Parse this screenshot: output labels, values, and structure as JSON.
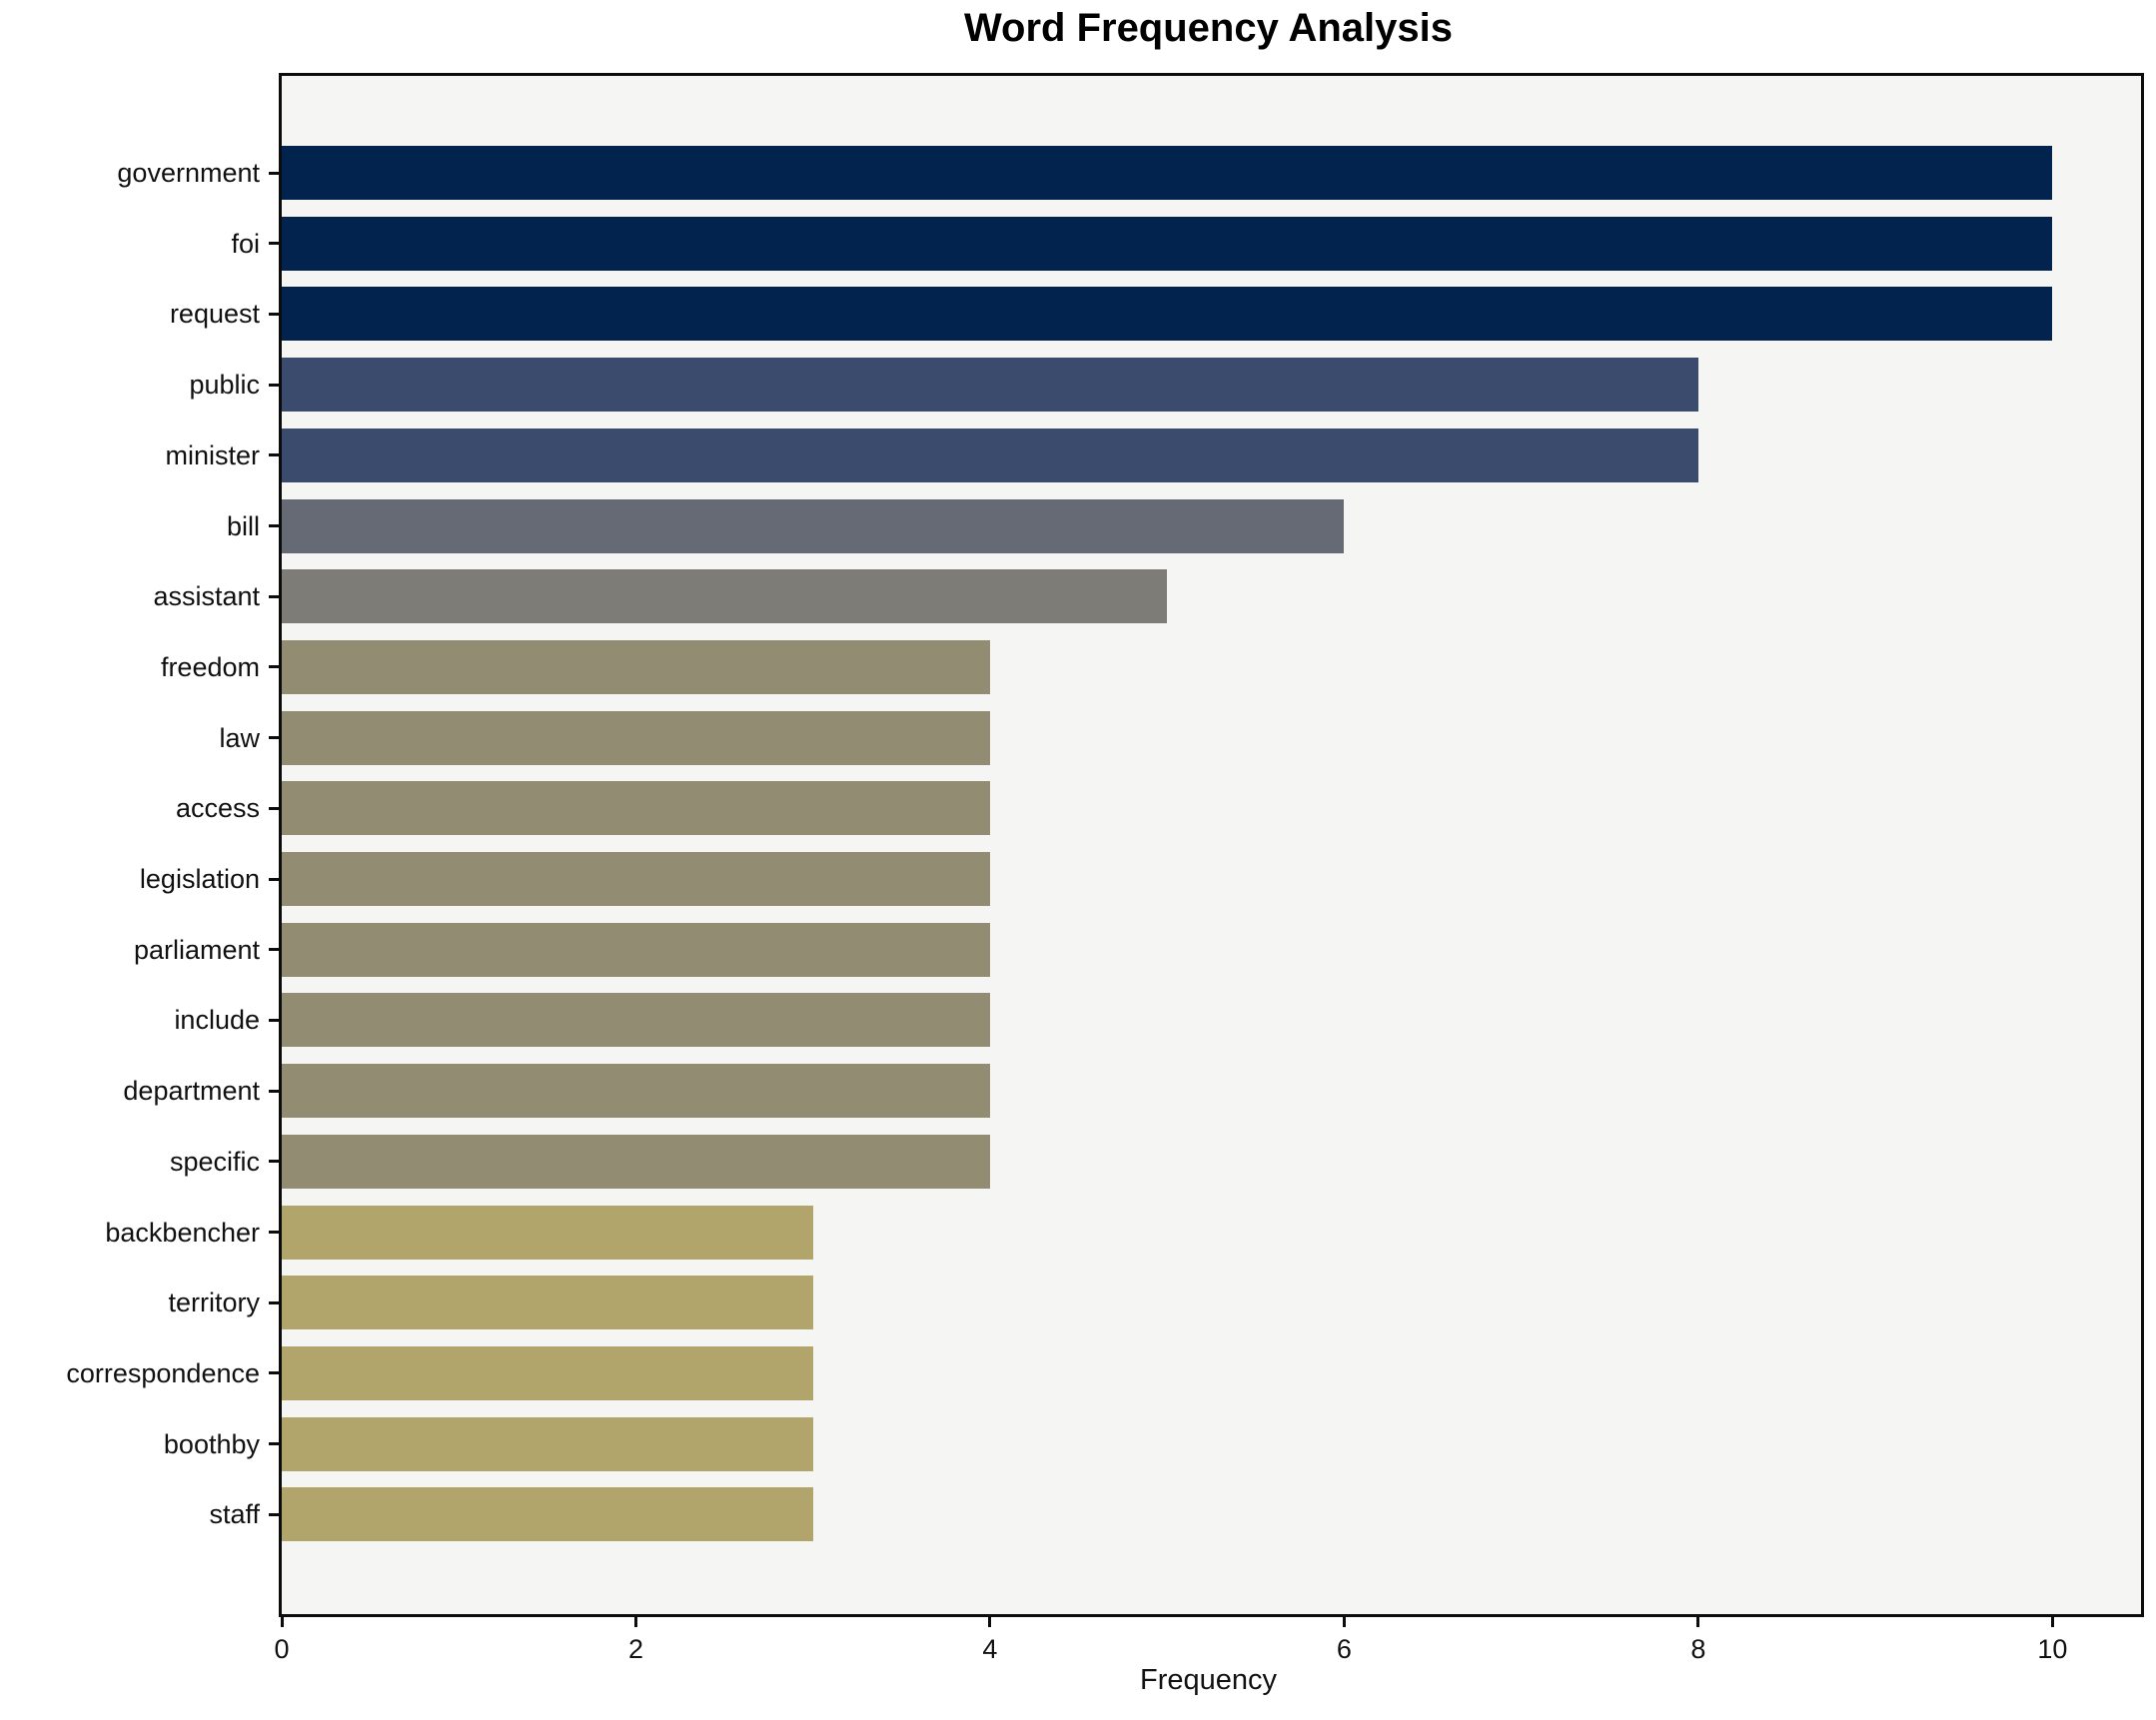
{
  "chart_data": {
    "type": "bar",
    "orientation": "horizontal",
    "title": "Word Frequency Analysis",
    "xlabel": "Frequency",
    "ylabel": "",
    "grid": false,
    "legend": null,
    "xlim": [
      0,
      10.5
    ],
    "x_ticks": [
      0,
      2,
      4,
      6,
      8,
      10
    ],
    "categories": [
      "government",
      "foi",
      "request",
      "public",
      "minister",
      "bill",
      "assistant",
      "freedom",
      "law",
      "access",
      "legislation",
      "parliament",
      "include",
      "department",
      "specific",
      "backbencher",
      "territory",
      "correspondence",
      "boothby",
      "staff"
    ],
    "values": [
      10,
      10,
      10,
      8,
      8,
      6,
      5,
      4,
      4,
      4,
      4,
      4,
      4,
      4,
      4,
      3,
      3,
      3,
      3,
      3
    ],
    "bar_colors": [
      "#02234e",
      "#02234e",
      "#02234e",
      "#3b4b6e",
      "#3b4b6e",
      "#666a74",
      "#7d7c76",
      "#918c72",
      "#918c72",
      "#918c72",
      "#918c72",
      "#918c72",
      "#918c72",
      "#918c72",
      "#918c72",
      "#b2a56c",
      "#b2a56c",
      "#b2a56c",
      "#b2a56c",
      "#b2a56c"
    ],
    "colors": {
      "figure_background": "#ffffff",
      "plot_background": "#f5f5f3",
      "spine": "#0c0c0c",
      "text": "#111111"
    }
  }
}
